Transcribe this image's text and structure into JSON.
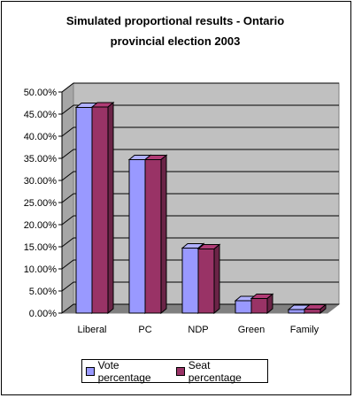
{
  "chart_data": {
    "type": "bar",
    "title_lines": [
      "Simulated proportional results - Ontario",
      "provincial election 2003"
    ],
    "categories": [
      "Liberal",
      "PC",
      "NDP",
      "Green",
      "Family"
    ],
    "series": [
      {
        "name": "Vote percentage",
        "color": "#9999ff",
        "values": [
          46.5,
          34.7,
          14.7,
          2.8,
          0.8
        ]
      },
      {
        "name": "Seat percentage",
        "color": "#993366",
        "values": [
          46.6,
          34.7,
          14.5,
          3.3,
          0.9
        ]
      }
    ],
    "ylim": [
      0,
      50
    ],
    "yticks": [
      "0.00%",
      "5.00%",
      "10.00%",
      "15.00%",
      "20.00%",
      "25.00%",
      "30.00%",
      "35.00%",
      "40.00%",
      "45.00%",
      "50.00%"
    ],
    "grid": true,
    "legend_position": "bottom"
  }
}
